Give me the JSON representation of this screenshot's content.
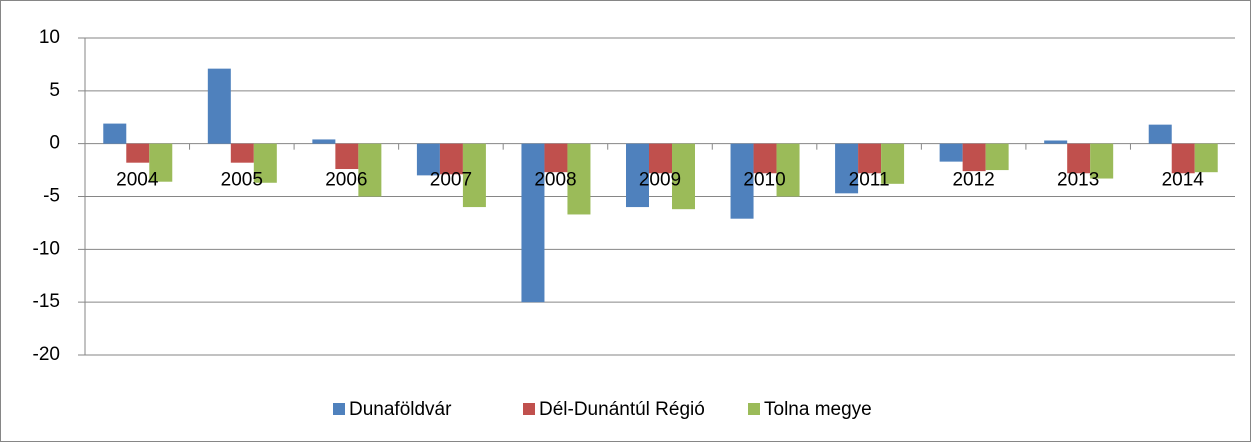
{
  "chart_data": {
    "type": "bar",
    "categories": [
      "2004",
      "2005",
      "2006",
      "2007",
      "2008",
      "2009",
      "2010",
      "2011",
      "2012",
      "2013",
      "2014"
    ],
    "series": [
      {
        "name": "Dunaföldvár",
        "color": "#4f81bd",
        "values": [
          1.9,
          7.1,
          0.4,
          -3.0,
          -15.0,
          -6.0,
          -7.1,
          -4.7,
          -1.7,
          0.3,
          1.8
        ]
      },
      {
        "name": "Dél-Dunántúl Régió",
        "color": "#c0504d",
        "values": [
          -1.8,
          -1.8,
          -2.4,
          -2.9,
          -2.7,
          -2.8,
          -2.8,
          -2.8,
          -2.6,
          -2.8,
          -2.8
        ]
      },
      {
        "name": "Tolna megye",
        "color": "#9bbb59",
        "values": [
          -3.6,
          -3.7,
          -5.0,
          -6.0,
          -6.7,
          -6.2,
          -5.0,
          -3.8,
          -2.5,
          -3.3,
          -2.7
        ]
      }
    ],
    "ylim": [
      -20,
      10
    ],
    "yticks": [
      -20,
      -15,
      -10,
      -5,
      0,
      5,
      10
    ],
    "grid": true,
    "legend": "bottom"
  }
}
